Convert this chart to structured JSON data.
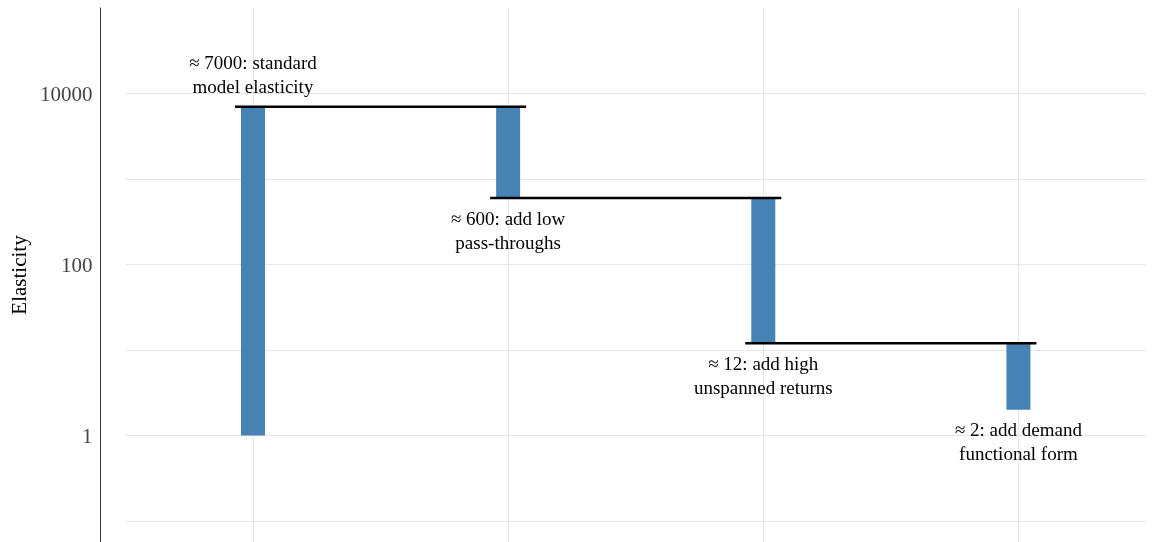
{
  "chart_data": {
    "type": "bar",
    "categories": [
      null,
      null,
      null,
      null
    ],
    "base": [
      1,
      7000,
      600,
      12
    ],
    "values": [
      6999,
      -6400,
      -588,
      -10
    ],
    "color": "#4682b4",
    "log": true,
    "ylim": [
      0.057,
      100000
    ],
    "yticks": [
      {
        "value": 0.1,
        "label": null
      },
      1,
      {
        "value": 10,
        "label": null
      },
      100,
      {
        "value": 1000,
        "label": null
      },
      10000
    ],
    "ylabel": "Elasticity",
    "grid": true,
    "tick_labels": "y",
    "annotations": [
      "≈ 7000: standard\nmodel elasticity",
      "≈ 600: add low\npass-throughs",
      "≈ 12: add high\nunspanned returns",
      "≈ 2: add demand\nfunctional form"
    ]
  }
}
